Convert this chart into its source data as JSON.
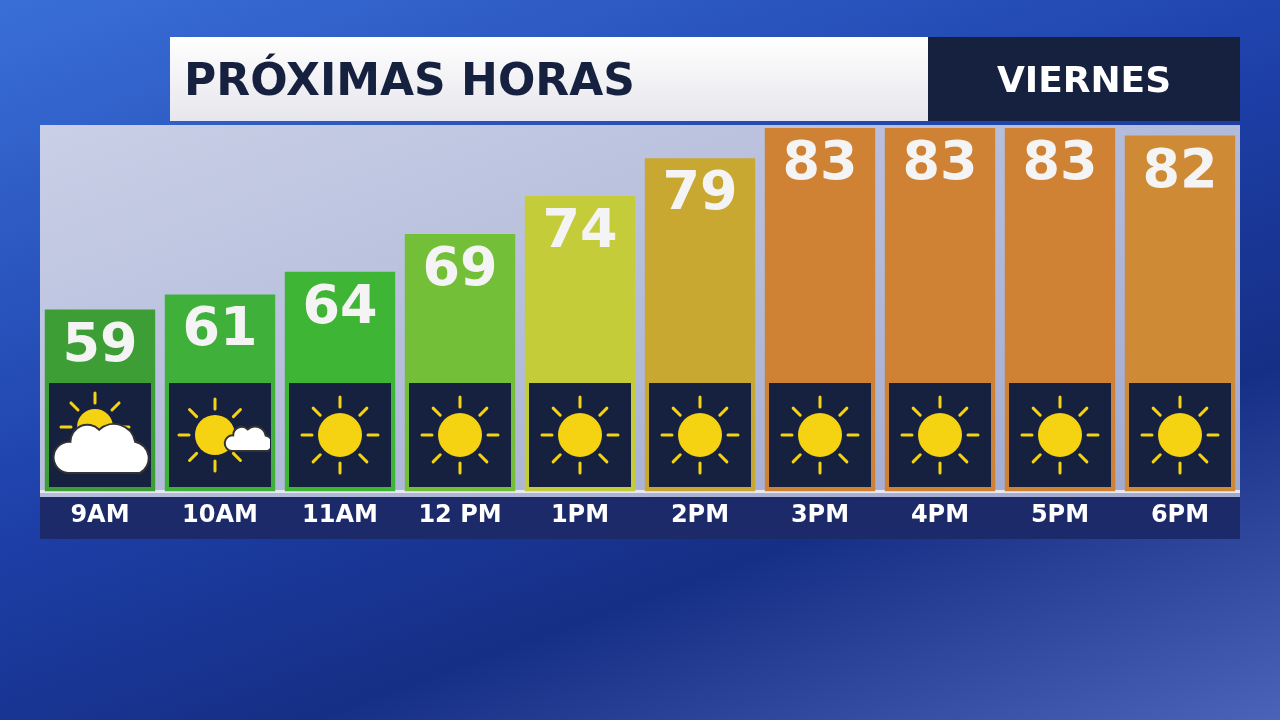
{
  "chart_data": {
    "type": "bar",
    "title": "PRÓXIMAS HORAS",
    "subtitle": "VIERNES",
    "categories": [
      "9AM",
      "10AM",
      "11AM",
      "12 PM",
      "1PM",
      "2PM",
      "3PM",
      "4PM",
      "5PM",
      "6PM"
    ],
    "values": [
      59,
      61,
      64,
      69,
      74,
      79,
      83,
      83,
      83,
      82
    ],
    "colors": [
      "#3c9e34",
      "#3fb13a",
      "#3eb535",
      "#74bf38",
      "#c4cc3a",
      "#c9a832",
      "#cf8233",
      "#cf8233",
      "#cf8233",
      "#cf8a36"
    ],
    "ylim": [
      35,
      83
    ],
    "tick_labels": "x",
    "grid": false,
    "legend": false,
    "data_labels": true
  }
}
